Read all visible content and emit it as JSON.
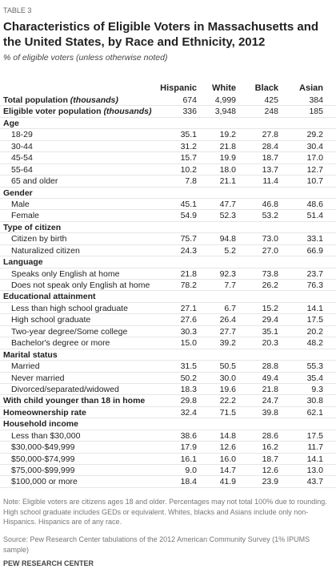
{
  "header": {
    "label": "TABLE 3",
    "title": "Characteristics of Eligible Voters in Massachusetts and the United States, by Race and Ethnicity, 2012",
    "subtitle": "% of eligible voters (unless otherwise noted)"
  },
  "table": {
    "columns": [
      "Hispanic",
      "White",
      "Black",
      "Asian"
    ],
    "rows": [
      {
        "label": "Total population",
        "note": "(thousands)",
        "values": [
          "674",
          "4,999",
          "425",
          "384"
        ]
      },
      {
        "label": "Eligible voter population",
        "note": "(thousands)",
        "values": [
          "336",
          "3,948",
          "248",
          "185"
        ]
      },
      {
        "heading": "Age",
        "rows": [
          {
            "label": "18-29",
            "values": [
              "35.1",
              "19.2",
              "27.8",
              "29.2"
            ]
          },
          {
            "label": "30-44",
            "values": [
              "31.2",
              "21.8",
              "28.4",
              "30.4"
            ]
          },
          {
            "label": "45-54",
            "values": [
              "15.7",
              "19.9",
              "18.7",
              "17.0"
            ]
          },
          {
            "label": "55-64",
            "values": [
              "10.2",
              "18.0",
              "13.7",
              "12.7"
            ]
          },
          {
            "label": "65 and older",
            "values": [
              "7.8",
              "21.1",
              "11.4",
              "10.7"
            ]
          }
        ]
      },
      {
        "heading": "Gender",
        "rows": [
          {
            "label": "Male",
            "values": [
              "45.1",
              "47.7",
              "46.8",
              "48.6"
            ]
          },
          {
            "label": "Female",
            "values": [
              "54.9",
              "52.3",
              "53.2",
              "51.4"
            ]
          }
        ]
      },
      {
        "heading": "Type of citizen",
        "rows": [
          {
            "label": "Citizen by birth",
            "values": [
              "75.7",
              "94.8",
              "73.0",
              "33.1"
            ]
          },
          {
            "label": "Naturalized citizen",
            "values": [
              "24.3",
              "5.2",
              "27.0",
              "66.9"
            ]
          }
        ]
      },
      {
        "heading": "Language",
        "rows": [
          {
            "label": "Speaks only English at home",
            "values": [
              "21.8",
              "92.3",
              "73.8",
              "23.7"
            ]
          },
          {
            "label": "Does not speak only English at home",
            "values": [
              "78.2",
              "7.7",
              "26.2",
              "76.3"
            ]
          }
        ]
      },
      {
        "heading": "Educational attainment",
        "rows": [
          {
            "label": "Less than high school graduate",
            "values": [
              "27.1",
              "6.7",
              "15.2",
              "14.1"
            ]
          },
          {
            "label": "High school graduate",
            "values": [
              "27.6",
              "26.4",
              "29.4",
              "17.5"
            ]
          },
          {
            "label": "Two-year degree/Some college",
            "values": [
              "30.3",
              "27.7",
              "35.1",
              "20.2"
            ]
          },
          {
            "label": "Bachelor's degree or more",
            "values": [
              "15.0",
              "39.2",
              "20.3",
              "48.2"
            ]
          }
        ]
      },
      {
        "heading": "Marital status",
        "rows": [
          {
            "label": "Married",
            "values": [
              "31.5",
              "50.5",
              "28.8",
              "55.3"
            ]
          },
          {
            "label": "Never married",
            "values": [
              "50.2",
              "30.0",
              "49.4",
              "35.4"
            ]
          },
          {
            "label": "Divorced/separated/widowed",
            "values": [
              "18.3",
              "19.6",
              "21.8",
              "9.3"
            ]
          }
        ]
      },
      {
        "label": "With child younger than 18 in home",
        "values": [
          "29.8",
          "22.2",
          "24.7",
          "30.8"
        ]
      },
      {
        "label": "Homeownership rate",
        "values": [
          "32.4",
          "71.5",
          "39.8",
          "62.1"
        ]
      },
      {
        "heading": "Household income",
        "rows": [
          {
            "label": "Less than $30,000",
            "values": [
              "38.6",
              "14.8",
              "28.6",
              "17.5"
            ]
          },
          {
            "label": "$30,000-$49,999",
            "values": [
              "17.9",
              "12.6",
              "16.2",
              "11.7"
            ]
          },
          {
            "label": "$50,000-$74,999",
            "values": [
              "16.1",
              "16.0",
              "18.7",
              "14.1"
            ]
          },
          {
            "label": "$75,000-$99,999",
            "values": [
              "9.0",
              "14.7",
              "12.6",
              "13.0"
            ]
          },
          {
            "label": "$100,000 or more",
            "values": [
              "18.4",
              "41.9",
              "23.9",
              "43.7"
            ]
          }
        ]
      }
    ]
  },
  "footer": {
    "note": "Note: Eligible voters are citizens ages 18 and older. Percentages may not total 100% due to rounding. High school graduate includes GEDs or equivalent. Whites, blacks and Asians include only non-Hispanics. Hispanics are of any race.",
    "source": "Source: Pew Research Center tabulations of the 2012 American Community Survey (1% IPUMS sample)",
    "org": "PEW RESEARCH CENTER"
  }
}
